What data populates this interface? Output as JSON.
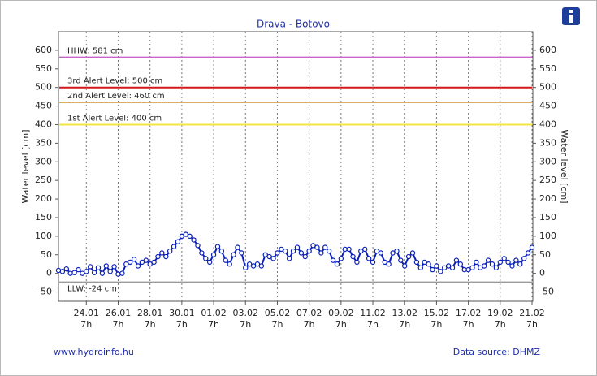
{
  "chart_data": {
    "type": "line",
    "title": "Drava - Botovo",
    "ylabel": "Water level [cm]",
    "y2label": "Water level [cm]",
    "ylim": [
      -75,
      650
    ],
    "yticks": [
      -50,
      0,
      50,
      100,
      150,
      200,
      250,
      300,
      350,
      400,
      450,
      500,
      550,
      600
    ],
    "grid": true,
    "categories": [
      null,
      null,
      null,
      null,
      null,
      null,
      null,
      [
        "24.01",
        "7h"
      ],
      null,
      null,
      null,
      null,
      null,
      null,
      null,
      [
        "26.01",
        "7h"
      ],
      null,
      null,
      null,
      null,
      null,
      null,
      null,
      [
        "28.01",
        "7h"
      ],
      null,
      null,
      null,
      null,
      null,
      null,
      null,
      [
        "30.01",
        "7h"
      ],
      null,
      null,
      null,
      null,
      null,
      null,
      null,
      [
        "01.02",
        "7h"
      ],
      null,
      null,
      null,
      null,
      null,
      null,
      null,
      [
        "03.02",
        "7h"
      ],
      null,
      null,
      null,
      null,
      null,
      null,
      null,
      [
        "05.02",
        "7h"
      ],
      null,
      null,
      null,
      null,
      null,
      null,
      null,
      [
        "07.02",
        "7h"
      ],
      null,
      null,
      null,
      null,
      null,
      null,
      null,
      [
        "09.02",
        "7h"
      ],
      null,
      null,
      null,
      null,
      null,
      null,
      null,
      [
        "11.02",
        "7h"
      ],
      null,
      null,
      null,
      null,
      null,
      null,
      null,
      [
        "13.02",
        "7h"
      ],
      null,
      null,
      null,
      null,
      null,
      null,
      null,
      [
        "15.02",
        "7h"
      ],
      null,
      null,
      null,
      null,
      null,
      null,
      null,
      [
        "17.02",
        "7h"
      ],
      null,
      null,
      null,
      null,
      null,
      null,
      null,
      [
        "19.02",
        "7h"
      ],
      null,
      null,
      null,
      null,
      null,
      null,
      null,
      [
        "21.02",
        "7h"
      ]
    ],
    "series": [
      {
        "color": "#0a1fb8",
        "values": [
          8,
          5,
          12,
          0,
          2,
          10,
          0,
          5,
          18,
          2,
          15,
          0,
          20,
          5,
          18,
          -2,
          0,
          25,
          30,
          38,
          20,
          30,
          35,
          25,
          30,
          45,
          55,
          45,
          60,
          72,
          85,
          100,
          105,
          100,
          90,
          75,
          55,
          40,
          30,
          50,
          72,
          60,
          35,
          25,
          50,
          70,
          55,
          15,
          25,
          20,
          25,
          20,
          50,
          45,
          40,
          55,
          65,
          60,
          40,
          60,
          70,
          55,
          45,
          60,
          75,
          70,
          55,
          70,
          60,
          35,
          25,
          40,
          65,
          65,
          45,
          30,
          60,
          65,
          40,
          30,
          60,
          55,
          30,
          25,
          55,
          60,
          35,
          20,
          45,
          55,
          30,
          15,
          30,
          25,
          10,
          20,
          5,
          15,
          20,
          15,
          35,
          25,
          10,
          10,
          15,
          30,
          15,
          20,
          35,
          25,
          15,
          30,
          40,
          30,
          20,
          35,
          25,
          40,
          55,
          70
        ]
      }
    ],
    "reference_lines": [
      {
        "text": "HHW: 581 cm",
        "value": 581,
        "color": "#c865c8"
      },
      {
        "text": "3rd Alert Level: 500 cm",
        "value": 500,
        "color": "#d01818"
      },
      {
        "text": "2nd Alert Level: 460 cm",
        "value": 460,
        "color": "#d8b060"
      },
      {
        "text": "1st Alert Level: 400 cm",
        "value": 400,
        "color": "#f2e640"
      },
      {
        "text": "LLW: -24 cm",
        "value": -24,
        "color": "#9a9a9a"
      }
    ],
    "footer_left": "www.hydroinfo.hu",
    "footer_right": "Data source: DHMZ"
  }
}
